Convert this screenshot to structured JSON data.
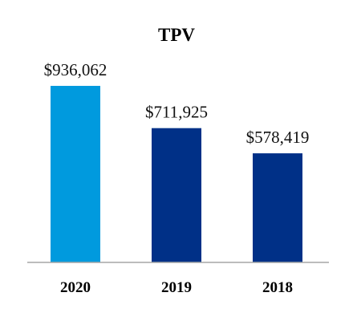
{
  "chart_data": {
    "type": "bar",
    "title": "TPV",
    "categories": [
      "2020",
      "2019",
      "2018"
    ],
    "values": [
      936062,
      711925,
      578419
    ],
    "data_labels": [
      "$936,062",
      "$711,925",
      "$578,419"
    ],
    "bar_colors": [
      "#009ADE",
      "#003087",
      "#003087"
    ],
    "axis_color": "#A6A6A6",
    "ylim": [
      0,
      1000000
    ],
    "grid": false,
    "legend": "none"
  }
}
